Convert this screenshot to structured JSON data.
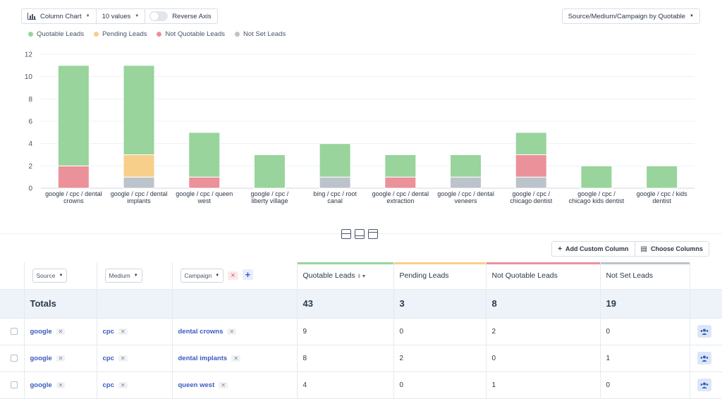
{
  "toolbar": {
    "chart_type_label": "Column Chart",
    "values_label": "10 values",
    "reverse_axis_label": "Reverse Axis",
    "group_by_label": "Source/Medium/Campaign by Quotable"
  },
  "colors": {
    "quotable": "#98d49c",
    "pending": "#f8cf8a",
    "not_quotable": "#eb919a",
    "not_set": "#bcc3cb",
    "accent": "#3b5bbf"
  },
  "legend": [
    {
      "label": "Quotable Leads",
      "color": "#98d49c"
    },
    {
      "label": "Pending Leads",
      "color": "#f8cf8a"
    },
    {
      "label": "Not Quotable Leads",
      "color": "#eb919a"
    },
    {
      "label": "Not Set Leads",
      "color": "#bcc3cb"
    }
  ],
  "chart_data": {
    "type": "bar",
    "stacked": true,
    "categories": [
      [
        "google / cpc / dental",
        "crowns"
      ],
      [
        "google / cpc / dental",
        "implants"
      ],
      [
        "google / cpc / queen",
        "west"
      ],
      [
        "google / cpc /",
        "liberty village"
      ],
      [
        "bing / cpc / root",
        "canal"
      ],
      [
        "google / cpc / dental",
        "extraction"
      ],
      [
        "google / cpc / dental",
        "veneers"
      ],
      [
        "google / cpc /",
        "chicago dentist"
      ],
      [
        "google / cpc /",
        "chicago kids dentist"
      ],
      [
        "google / cpc / kids",
        "dentist"
      ]
    ],
    "series": [
      {
        "name": "Not Set Leads",
        "color": "#bcc3cb",
        "values": [
          0,
          1,
          0,
          0,
          1,
          0,
          1,
          1,
          0,
          0
        ]
      },
      {
        "name": "Not Quotable Leads",
        "color": "#eb919a",
        "values": [
          2,
          0,
          1,
          0,
          0,
          1,
          0,
          2,
          0,
          0
        ]
      },
      {
        "name": "Pending Leads",
        "color": "#f8cf8a",
        "values": [
          0,
          2,
          0,
          0,
          0,
          0,
          0,
          0,
          0,
          0
        ]
      },
      {
        "name": "Quotable Leads",
        "color": "#98d49c",
        "values": [
          9,
          8,
          4,
          3,
          3,
          2,
          2,
          2,
          2,
          2
        ]
      }
    ],
    "yticks": [
      0,
      2,
      4,
      6,
      8,
      10,
      12
    ],
    "ylim": [
      0,
      12
    ],
    "grid": true
  },
  "table_actions": {
    "add_custom_column": "Add Custom Column",
    "choose_columns": "Choose Columns"
  },
  "table": {
    "filters": {
      "source": "Source",
      "medium": "Medium",
      "campaign": "Campaign"
    },
    "columns": [
      "Quotable Leads",
      "Pending Leads",
      "Not Quotable Leads",
      "Not Set Leads"
    ],
    "totals": {
      "label": "Totals",
      "values": [
        "43",
        "3",
        "8",
        "19"
      ]
    },
    "rows": [
      {
        "source": "google",
        "medium": "cpc",
        "campaign": "dental crowns",
        "values": [
          "9",
          "0",
          "2",
          "0"
        ]
      },
      {
        "source": "google",
        "medium": "cpc",
        "campaign": "dental implants",
        "values": [
          "8",
          "2",
          "0",
          "1"
        ]
      },
      {
        "source": "google",
        "medium": "cpc",
        "campaign": "queen west",
        "values": [
          "4",
          "0",
          "1",
          "0"
        ]
      }
    ]
  }
}
